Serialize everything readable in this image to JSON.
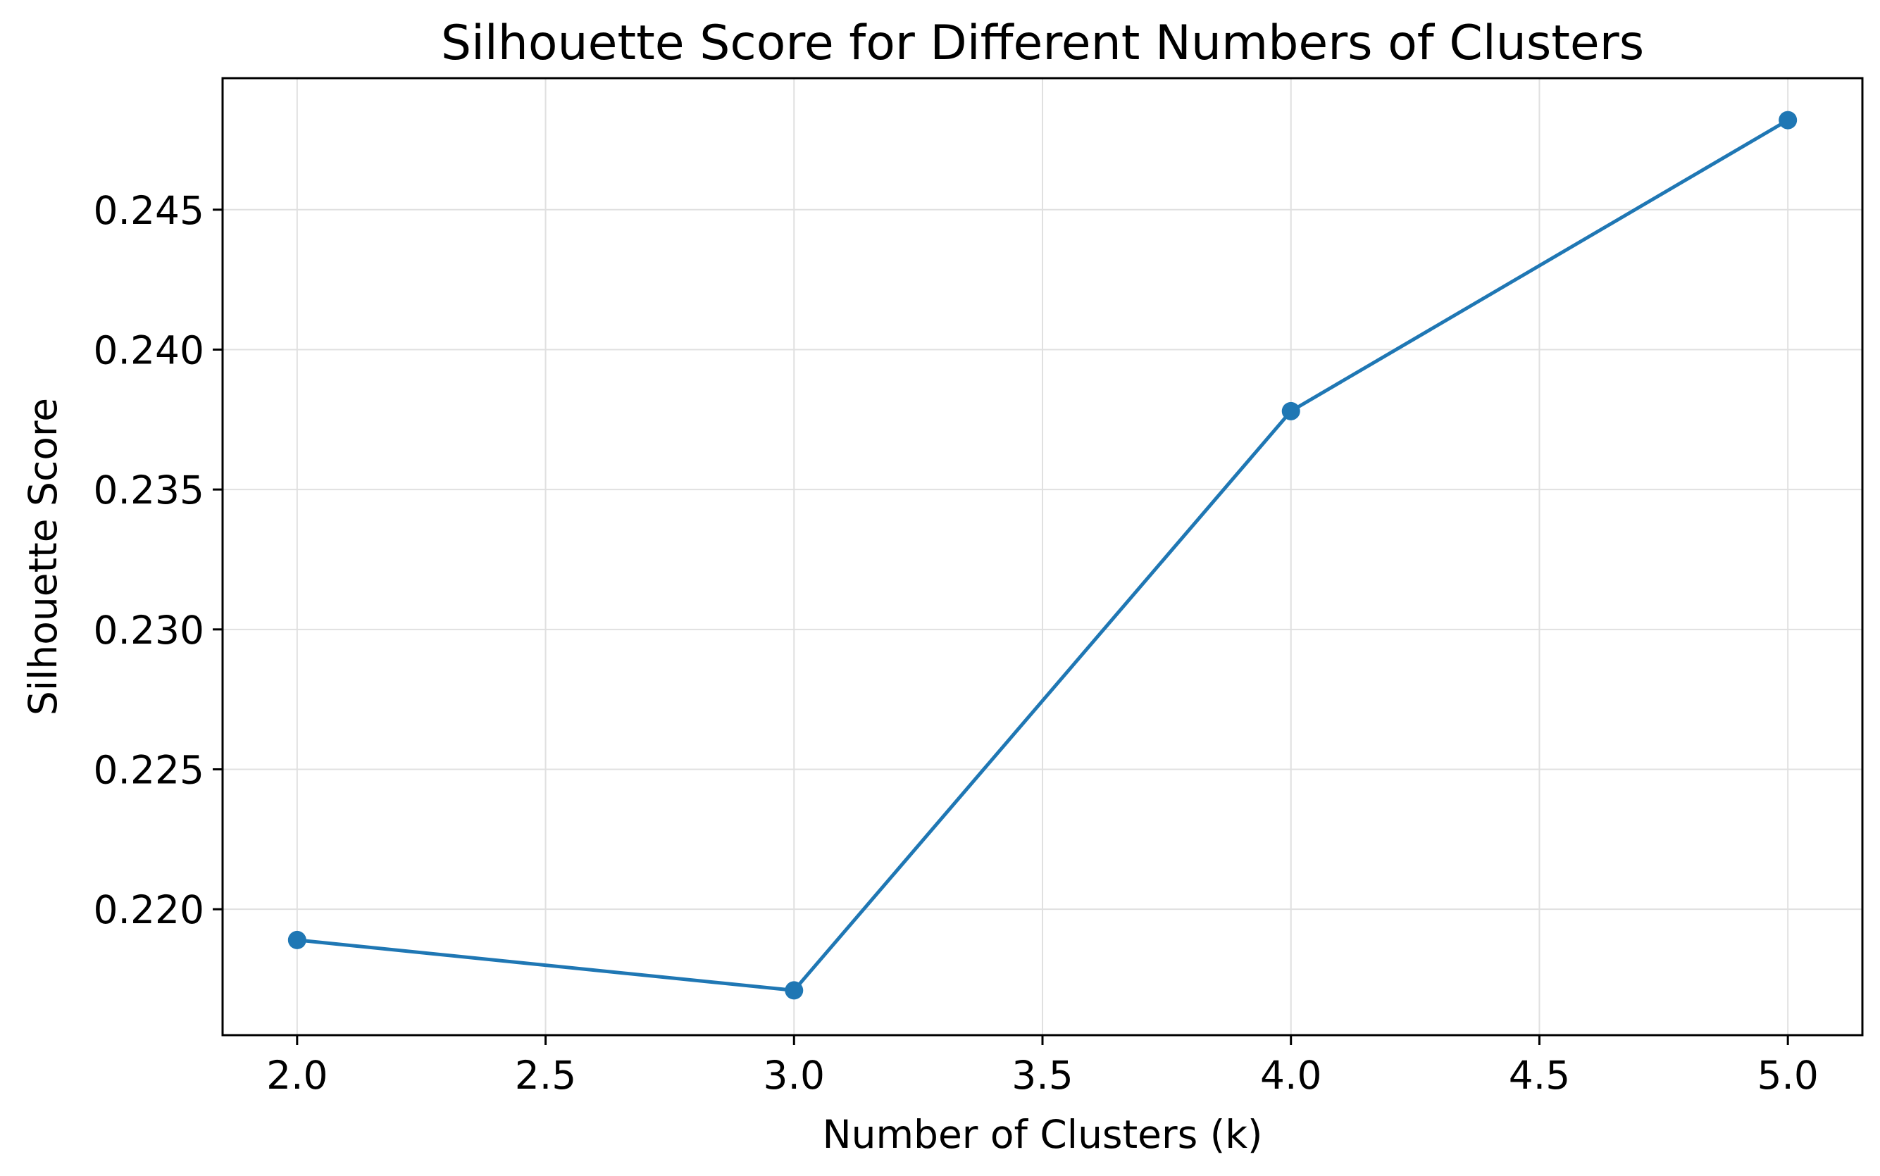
{
  "chart_data": {
    "type": "line",
    "title": "Silhouette Score for Different Numbers of Clusters",
    "xlabel": "Number of Clusters (k)",
    "ylabel": "Silhouette Score",
    "x": [
      2,
      3,
      4,
      5
    ],
    "series": [
      {
        "values": [
          0.2189,
          0.2171,
          0.2378,
          0.2482
        ],
        "color": "#1f77b4",
        "marker": "circle"
      }
    ],
    "xlim": [
      1.85,
      5.15
    ],
    "ylim": [
      0.2155,
      0.2497
    ],
    "xticks": [
      2.0,
      2.5,
      3.0,
      3.5,
      4.0,
      4.5,
      5.0
    ],
    "xtick_labels": [
      "2.0",
      "2.5",
      "3.0",
      "3.5",
      "4.0",
      "4.5",
      "5.0"
    ],
    "yticks": [
      0.22,
      0.225,
      0.23,
      0.235,
      0.24,
      0.245
    ],
    "ytick_labels": [
      "0.220",
      "0.225",
      "0.230",
      "0.235",
      "0.240",
      "0.245"
    ],
    "grid": true,
    "grid_color": "#e0e0e0",
    "legend": "none"
  }
}
